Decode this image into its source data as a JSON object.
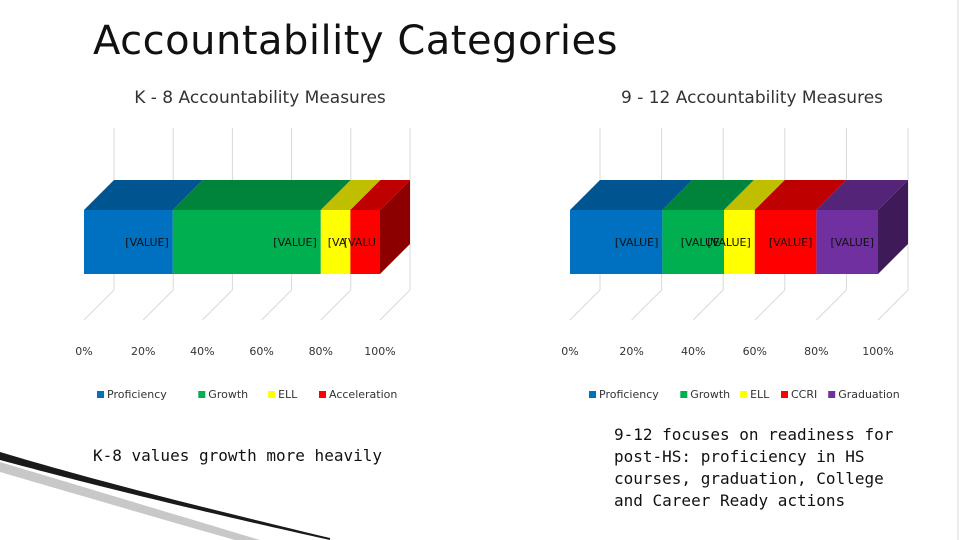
{
  "slide": {
    "title": "Accountability Categories",
    "caption_left": "K-8 values growth more heavily",
    "caption_right": "9-12 focuses on readiness for post-HS: proficiency in HS courses, graduation, College and Career Ready actions"
  },
  "chart_data": [
    {
      "type": "bar",
      "orientation": "horizontal-stacked-100",
      "title": "K - 8 Accountability Measures",
      "xlim": [
        0,
        100
      ],
      "x_tick_labels": [
        "0%",
        "20%",
        "40%",
        "60%",
        "80%",
        "100%"
      ],
      "data_label_text": "[VALUE]",
      "grid": true,
      "legend_position": "bottom",
      "series": [
        {
          "name": "Proficiency",
          "value": 30,
          "label": "[VALUE]",
          "color": "#0070C0"
        },
        {
          "name": "Growth",
          "value": 50,
          "label": "[VALUE]",
          "color": "#00B050"
        },
        {
          "name": "ELL",
          "value": 10,
          "label": "[VA",
          "color": "#FFFF00"
        },
        {
          "name": "Acceleration",
          "value": 10,
          "label": "[VALU",
          "color": "#FF0000"
        }
      ]
    },
    {
      "type": "bar",
      "orientation": "horizontal-stacked-100",
      "title": "9 - 12 Accountability Measures",
      "xlim": [
        0,
        100
      ],
      "x_tick_labels": [
        "0%",
        "20%",
        "40%",
        "60%",
        "80%",
        "100%"
      ],
      "data_label_text": "[VALUE]",
      "grid": true,
      "legend_position": "bottom",
      "series": [
        {
          "name": "Proficiency",
          "value": 30,
          "label": "[VALUE]",
          "color": "#0070C0"
        },
        {
          "name": "Growth",
          "value": 20,
          "label": "[VALUE",
          "color": "#00B050"
        },
        {
          "name": "ELL",
          "value": 10,
          "label": "[VALUE]",
          "color": "#FFFF00"
        },
        {
          "name": "CCRI",
          "value": 20,
          "label": "[VALUE]",
          "color": "#FF0000"
        },
        {
          "name": "Graduation",
          "value": 20,
          "label": "[VALUE]",
          "color": "#7030A0"
        }
      ]
    }
  ]
}
